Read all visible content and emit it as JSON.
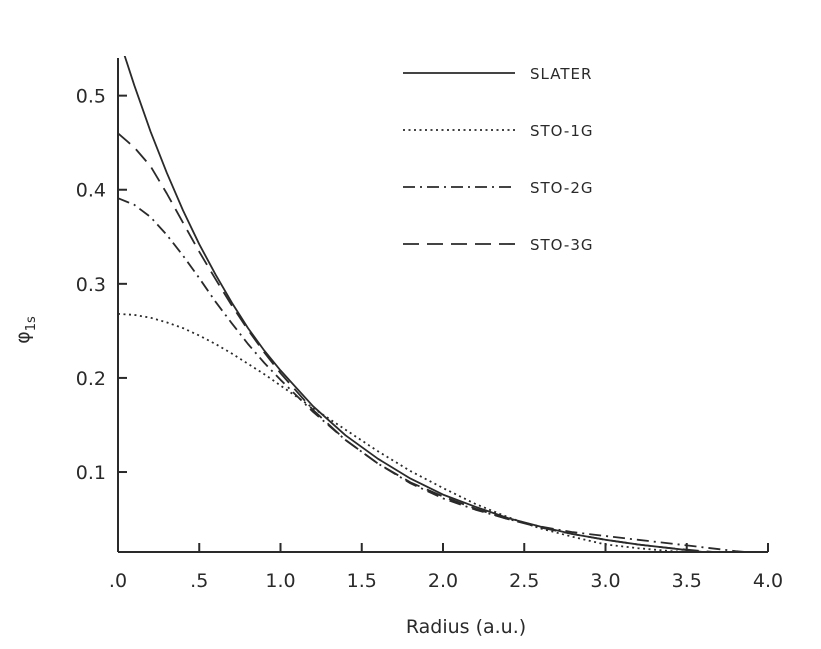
{
  "chart_data": {
    "type": "line",
    "xlabel": "Radius (a.u.)",
    "ylabel_main": "φ",
    "ylabel_sub": "1s",
    "xlim": [
      0,
      4.0
    ],
    "ylim": [
      0.015,
      0.54
    ],
    "xticks": [
      0,
      0.5,
      1.0,
      1.5,
      2.0,
      2.5,
      3.0,
      3.5,
      4.0
    ],
    "xtick_labels": [
      ".0",
      ".5",
      "1.0",
      "1.5",
      "2.0",
      "2.5",
      "3.0",
      "3.5",
      "4.0"
    ],
    "yticks": [
      0.1,
      0.2,
      0.3,
      0.4,
      0.5
    ],
    "ytick_labels": [
      "0.1",
      "0.2",
      "0.3",
      "0.4",
      "0.5"
    ],
    "grid": false,
    "legend_position": "top-right",
    "colors": {
      "line": "#2a2a2a",
      "axis": "#2a2a2a",
      "background": "#ffffff"
    },
    "x": [
      0,
      0.1,
      0.2,
      0.3,
      0.4,
      0.5,
      0.6,
      0.7,
      0.8,
      0.9,
      1.0,
      1.2,
      1.4,
      1.6,
      1.8,
      2.0,
      2.2,
      2.4,
      2.6,
      2.8,
      3.0,
      3.2,
      3.4,
      3.6,
      3.8,
      4.0
    ],
    "series": [
      {
        "name": "SLATER",
        "dash": "solid",
        "values": [
          0.564,
          0.511,
          0.462,
          0.418,
          0.378,
          0.342,
          0.31,
          0.28,
          0.253,
          0.229,
          0.208,
          0.17,
          0.139,
          0.114,
          0.093,
          0.076,
          0.063,
          0.051,
          0.042,
          0.034,
          0.028,
          0.023,
          0.019,
          0.015,
          0.013,
          0.01
        ]
      },
      {
        "name": "STO-1G",
        "dash": "dotted",
        "values": [
          0.268,
          0.267,
          0.264,
          0.259,
          0.253,
          0.245,
          0.236,
          0.226,
          0.215,
          0.204,
          0.192,
          0.168,
          0.145,
          0.122,
          0.101,
          0.083,
          0.066,
          0.052,
          0.04,
          0.031,
          0.023,
          0.019,
          0.016,
          0.014,
          0.013,
          0.012
        ]
      },
      {
        "name": "STO-2G",
        "dash": "dashdot",
        "values": [
          0.391,
          0.384,
          0.371,
          0.352,
          0.33,
          0.306,
          0.281,
          0.258,
          0.236,
          0.216,
          0.198,
          0.164,
          0.134,
          0.109,
          0.088,
          0.072,
          0.06,
          0.05,
          0.042,
          0.036,
          0.032,
          0.028,
          0.024,
          0.02,
          0.016,
          0.013
        ]
      },
      {
        "name": "STO-3G",
        "dash": "dashed",
        "values": [
          0.46,
          0.445,
          0.425,
          0.396,
          0.365,
          0.334,
          0.305,
          0.277,
          0.251,
          0.227,
          0.205,
          0.166,
          0.134,
          0.109,
          0.089,
          0.074,
          0.061,
          0.05,
          0.041,
          0.034,
          0.028,
          0.023,
          0.019,
          0.016,
          0.013,
          0.011
        ]
      }
    ]
  }
}
